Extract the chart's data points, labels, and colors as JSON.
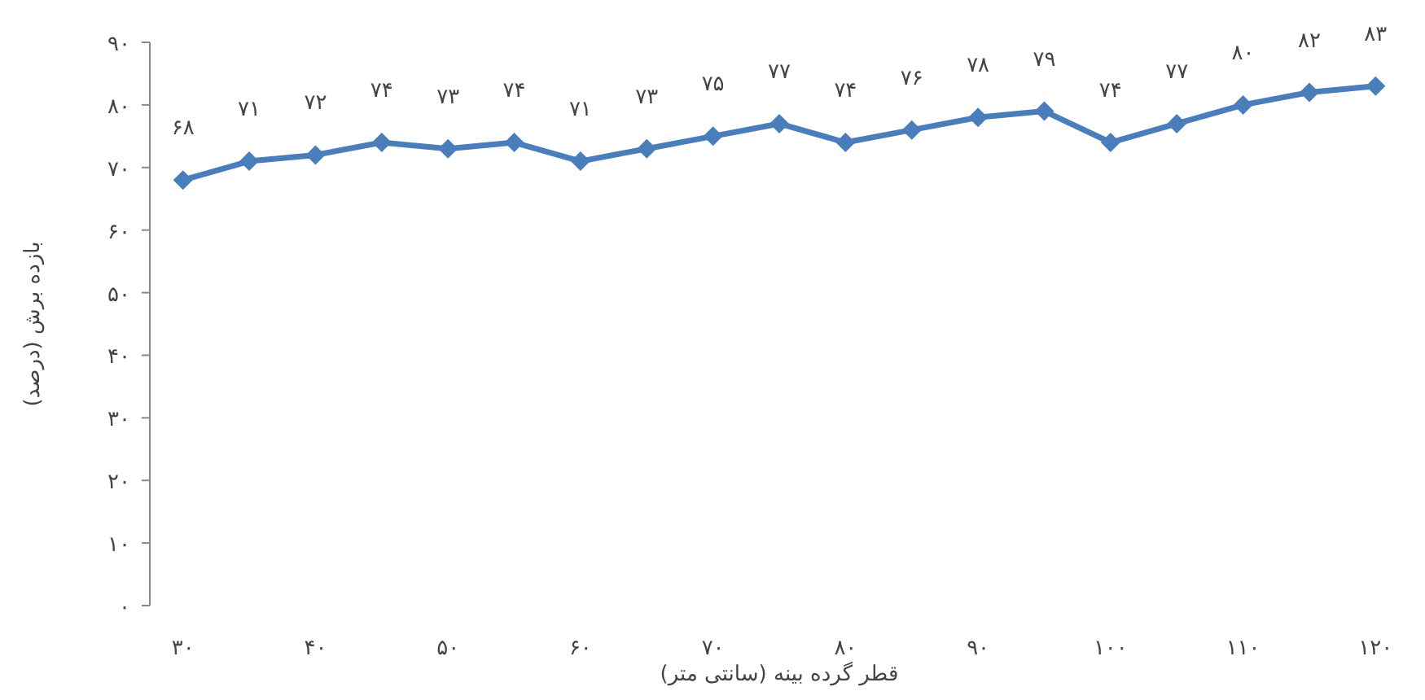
{
  "chart_data": {
    "type": "line",
    "xlabel": "قطر گرده بینه (سانتی متر)",
    "ylabel": "بازده برش (درصد)",
    "categories": [
      "۳۰",
      null,
      "۴۰",
      null,
      "۵۰",
      null,
      "۶۰",
      null,
      "۷۰",
      null,
      "۸۰",
      null,
      "۹۰",
      null,
      "۱۰۰",
      null,
      "۱۱۰",
      null,
      "۱۲۰"
    ],
    "series": [
      {
        "color": "#4a7ebb",
        "values": [
          68,
          71,
          72,
          74,
          73,
          74,
          71,
          73,
          75,
          77,
          74,
          76,
          78,
          79,
          74,
          77,
          80,
          82,
          83
        ],
        "value_labels": [
          "۶۸",
          "۷۱",
          "۷۲",
          "۷۴",
          "۷۳",
          "۷۴",
          "۷۱",
          "۷۳",
          "۷۵",
          "۷۷",
          "۷۴",
          "۷۶",
          "۷۸",
          "۷۹",
          "۷۴",
          "۷۷",
          "۸۰",
          "۸۲",
          "۸۳"
        ]
      }
    ],
    "ylim": [
      0,
      90
    ],
    "yticks": [
      {
        "value": 0,
        "label": "۰"
      },
      {
        "value": 10,
        "label": "۱۰"
      },
      {
        "value": 20,
        "label": "۲۰"
      },
      {
        "value": 30,
        "label": "۳۰"
      },
      {
        "value": 40,
        "label": "۴۰"
      },
      {
        "value": 50,
        "label": "۵۰"
      },
      {
        "value": 60,
        "label": "۶۰"
      },
      {
        "value": 70,
        "label": "۷۰"
      },
      {
        "value": 80,
        "label": "۸۰"
      },
      {
        "value": 90,
        "label": "۹۰"
      }
    ],
    "marker": "diamond",
    "line_style": "solid"
  }
}
